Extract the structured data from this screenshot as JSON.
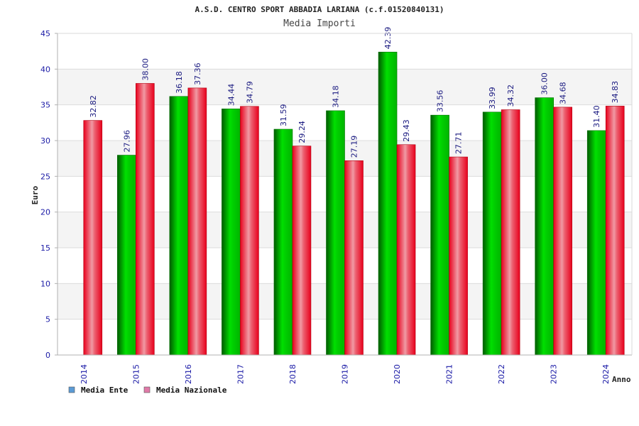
{
  "chart_data": {
    "type": "bar",
    "title": "A.S.D. CENTRO SPORT ABBADIA LARIANA (c.f.01520840131)",
    "subtitle": "Media Importi",
    "xlabel": "Anno",
    "ylabel": "Euro",
    "ylim": [
      0,
      45
    ],
    "yticks": [
      0,
      5,
      10,
      15,
      20,
      25,
      30,
      35,
      40,
      45
    ],
    "grid": true,
    "legend_position": "bottom-left",
    "categories": [
      "2014",
      "2015",
      "2016",
      "2017",
      "2018",
      "2019",
      "2020",
      "2021",
      "2022",
      "2023",
      "2024"
    ],
    "series": [
      {
        "name": "Media Ente",
        "color": "#00c000",
        "legend_color": "#5b9bd5",
        "values": [
          null,
          27.96,
          36.18,
          34.44,
          31.59,
          34.18,
          42.39,
          33.56,
          33.99,
          36.0,
          31.4
        ],
        "labels": [
          "",
          "27.96",
          "36.18",
          "34.44",
          "31.59",
          "34.18",
          "42.39",
          "33.56",
          "33.99",
          "36.00",
          "31.40"
        ]
      },
      {
        "name": "Media Nazionale",
        "color": "#ee1c2a",
        "legend_color": "#e07aa8",
        "values": [
          32.82,
          38.0,
          37.36,
          34.79,
          29.24,
          27.19,
          29.43,
          27.71,
          34.32,
          34.68,
          34.83
        ],
        "labels": [
          "32.82",
          "38.00",
          "37.36",
          "34.79",
          "29.24",
          "27.19",
          "29.43",
          "27.71",
          "34.32",
          "34.68",
          "34.83"
        ]
      }
    ]
  }
}
